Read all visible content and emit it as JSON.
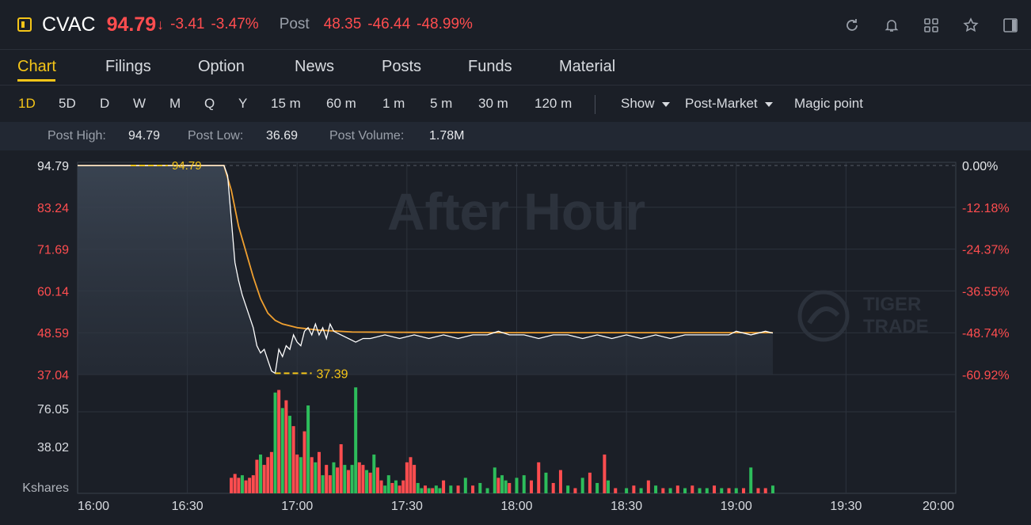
{
  "header": {
    "symbol": "CVAC",
    "price": "94.79",
    "price_arrow": "↓",
    "change": "-3.41",
    "change_pct": "-3.47%",
    "post_label": "Post",
    "post_price": "48.35",
    "post_change": "-46.44",
    "post_change_pct": "-48.99%",
    "icons": [
      "refresh-icon",
      "bell-icon",
      "grid-icon",
      "star-icon",
      "panel-icon"
    ]
  },
  "tabs": [
    "Chart",
    "Filings",
    "Option",
    "News",
    "Posts",
    "Funds",
    "Material"
  ],
  "active_tab": "Chart",
  "periods": [
    "1D",
    "5D",
    "D",
    "W",
    "M",
    "Q",
    "Y",
    "15 m",
    "60 m",
    "1 m",
    "5 m",
    "30 m",
    "120 m"
  ],
  "active_period": "1D",
  "options": {
    "show": "Show",
    "post_market": "Post-Market",
    "magic": "Magic point"
  },
  "stats": {
    "post_high_label": "Post High:",
    "post_high": "94.79",
    "post_low_label": "Post Low:",
    "post_low": "36.69",
    "post_volume_label": "Post Volume:",
    "post_volume": "1.78M"
  },
  "colors": {
    "up": "#2dbd5b",
    "down": "#ff4d4f",
    "accent": "#f5c518",
    "avg_line": "#f0a030",
    "price_line": "#ffffff"
  },
  "chart_data": {
    "type": "line",
    "watermark": "After Hour",
    "brand": [
      "TIGER",
      "TRADE"
    ],
    "x_ticks": [
      "16:00",
      "16:30",
      "17:00",
      "17:30",
      "18:00",
      "18:30",
      "19:00",
      "19:30",
      "20:00"
    ],
    "x_range": [
      "16:00",
      "20:00"
    ],
    "price_ticks": [
      "94.79",
      "83.24",
      "71.69",
      "60.14",
      "48.59",
      "37.04"
    ],
    "pct_ticks": [
      "0.00%",
      "-12.18%",
      "-24.37%",
      "-36.55%",
      "-48.74%",
      "-60.92%"
    ],
    "ylim": [
      37.04,
      94.79
    ],
    "high_annotation": "94.79",
    "low_annotation": "37.39",
    "price_series": [
      [
        0,
        94.79
      ],
      [
        40,
        94.79
      ],
      [
        41,
        92
      ],
      [
        42,
        80
      ],
      [
        43,
        68
      ],
      [
        44,
        63
      ],
      [
        45,
        59
      ],
      [
        46,
        56
      ],
      [
        47,
        53
      ],
      [
        48,
        50
      ],
      [
        49,
        45
      ],
      [
        50,
        43
      ],
      [
        51,
        44
      ],
      [
        52,
        41
      ],
      [
        53,
        38
      ],
      [
        54,
        37.39
      ],
      [
        55,
        44
      ],
      [
        56,
        42
      ],
      [
        57,
        45
      ],
      [
        58,
        44
      ],
      [
        59,
        48
      ],
      [
        60,
        46
      ],
      [
        61,
        45
      ],
      [
        62,
        49
      ],
      [
        63,
        50
      ],
      [
        64,
        48
      ],
      [
        65,
        51
      ],
      [
        66,
        48
      ],
      [
        67,
        50
      ],
      [
        68,
        47
      ],
      [
        69,
        51
      ],
      [
        70,
        49
      ],
      [
        72,
        48
      ],
      [
        74,
        47
      ],
      [
        76,
        46
      ],
      [
        78,
        47
      ],
      [
        80,
        47
      ],
      [
        84,
        48
      ],
      [
        88,
        47
      ],
      [
        92,
        48
      ],
      [
        96,
        47
      ],
      [
        100,
        48
      ],
      [
        104,
        47
      ],
      [
        108,
        48
      ],
      [
        112,
        48
      ],
      [
        115,
        49
      ],
      [
        118,
        48
      ],
      [
        122,
        48
      ],
      [
        126,
        47
      ],
      [
        130,
        48
      ],
      [
        134,
        48
      ],
      [
        138,
        47
      ],
      [
        142,
        48
      ],
      [
        146,
        47
      ],
      [
        150,
        48
      ],
      [
        154,
        47
      ],
      [
        158,
        48
      ],
      [
        162,
        47
      ],
      [
        166,
        48
      ],
      [
        170,
        48
      ],
      [
        174,
        48
      ],
      [
        176,
        48
      ],
      [
        178,
        48
      ],
      [
        180,
        49
      ],
      [
        184,
        48
      ],
      [
        188,
        49
      ],
      [
        190,
        48.5
      ]
    ],
    "avg_series": [
      [
        0,
        94.79
      ],
      [
        40,
        94.79
      ],
      [
        42,
        88
      ],
      [
        44,
        78
      ],
      [
        46,
        71
      ],
      [
        48,
        64
      ],
      [
        50,
        58
      ],
      [
        52,
        54
      ],
      [
        54,
        52
      ],
      [
        56,
        51
      ],
      [
        60,
        50
      ],
      [
        66,
        49.3
      ],
      [
        75,
        48.8
      ],
      [
        90,
        48.7
      ],
      [
        120,
        48.6
      ],
      [
        150,
        48.6
      ],
      [
        190,
        48.6
      ]
    ],
    "volume_label": "Kshares",
    "volume_ticks": [
      "76.05",
      "38.02"
    ],
    "volume_ylim": [
      0,
      95
    ],
    "volume_bars": [
      [
        42,
        12,
        "d"
      ],
      [
        43,
        15,
        "d"
      ],
      [
        44,
        12,
        "d"
      ],
      [
        45,
        14,
        "g"
      ],
      [
        46,
        10,
        "d"
      ],
      [
        47,
        12,
        "d"
      ],
      [
        48,
        14,
        "d"
      ],
      [
        49,
        26,
        "d"
      ],
      [
        50,
        30,
        "g"
      ],
      [
        51,
        22,
        "d"
      ],
      [
        52,
        28,
        "d"
      ],
      [
        53,
        32,
        "d"
      ],
      [
        54,
        78,
        "g"
      ],
      [
        55,
        80,
        "d"
      ],
      [
        56,
        66,
        "g"
      ],
      [
        57,
        72,
        "d"
      ],
      [
        58,
        60,
        "g"
      ],
      [
        59,
        52,
        "d"
      ],
      [
        60,
        30,
        "d"
      ],
      [
        61,
        28,
        "g"
      ],
      [
        62,
        48,
        "d"
      ],
      [
        63,
        68,
        "g"
      ],
      [
        64,
        28,
        "d"
      ],
      [
        65,
        24,
        "g"
      ],
      [
        66,
        32,
        "d"
      ],
      [
        67,
        14,
        "g"
      ],
      [
        68,
        22,
        "d"
      ],
      [
        69,
        14,
        "d"
      ],
      [
        70,
        24,
        "g"
      ],
      [
        71,
        20,
        "d"
      ],
      [
        72,
        38,
        "d"
      ],
      [
        73,
        22,
        "g"
      ],
      [
        74,
        18,
        "d"
      ],
      [
        75,
        22,
        "g"
      ],
      [
        76,
        82,
        "g"
      ],
      [
        77,
        24,
        "d"
      ],
      [
        78,
        22,
        "d"
      ],
      [
        79,
        18,
        "g"
      ],
      [
        80,
        16,
        "d"
      ],
      [
        81,
        30,
        "g"
      ],
      [
        82,
        20,
        "d"
      ],
      [
        83,
        10,
        "d"
      ],
      [
        84,
        6,
        "g"
      ],
      [
        85,
        14,
        "g"
      ],
      [
        86,
        8,
        "d"
      ],
      [
        87,
        10,
        "g"
      ],
      [
        88,
        6,
        "d"
      ],
      [
        89,
        10,
        "d"
      ],
      [
        90,
        24,
        "d"
      ],
      [
        91,
        28,
        "d"
      ],
      [
        92,
        22,
        "d"
      ],
      [
        93,
        8,
        "g"
      ],
      [
        94,
        4,
        "g"
      ],
      [
        95,
        6,
        "d"
      ],
      [
        96,
        4,
        "g"
      ],
      [
        97,
        4,
        "d"
      ],
      [
        98,
        6,
        "g"
      ],
      [
        99,
        4,
        "g"
      ],
      [
        100,
        10,
        "d"
      ],
      [
        102,
        6,
        "g"
      ],
      [
        104,
        6,
        "d"
      ],
      [
        106,
        12,
        "g"
      ],
      [
        108,
        6,
        "d"
      ],
      [
        110,
        8,
        "g"
      ],
      [
        112,
        4,
        "g"
      ],
      [
        114,
        20,
        "g"
      ],
      [
        115,
        12,
        "d"
      ],
      [
        116,
        14,
        "g"
      ],
      [
        117,
        10,
        "g"
      ],
      [
        118,
        8,
        "d"
      ],
      [
        120,
        12,
        "g"
      ],
      [
        122,
        14,
        "g"
      ],
      [
        124,
        10,
        "d"
      ],
      [
        126,
        24,
        "d"
      ],
      [
        128,
        16,
        "g"
      ],
      [
        130,
        8,
        "d"
      ],
      [
        132,
        18,
        "d"
      ],
      [
        134,
        6,
        "g"
      ],
      [
        136,
        4,
        "d"
      ],
      [
        138,
        12,
        "g"
      ],
      [
        140,
        16,
        "d"
      ],
      [
        142,
        8,
        "g"
      ],
      [
        144,
        30,
        "d"
      ],
      [
        145,
        10,
        "g"
      ],
      [
        147,
        4,
        "d"
      ],
      [
        150,
        4,
        "g"
      ],
      [
        152,
        6,
        "d"
      ],
      [
        154,
        4,
        "g"
      ],
      [
        156,
        10,
        "d"
      ],
      [
        158,
        6,
        "g"
      ],
      [
        160,
        4,
        "d"
      ],
      [
        162,
        4,
        "g"
      ],
      [
        164,
        6,
        "d"
      ],
      [
        166,
        4,
        "g"
      ],
      [
        168,
        6,
        "d"
      ],
      [
        170,
        4,
        "g"
      ],
      [
        172,
        4,
        "g"
      ],
      [
        174,
        6,
        "d"
      ],
      [
        176,
        4,
        "g"
      ],
      [
        178,
        4,
        "d"
      ],
      [
        180,
        4,
        "g"
      ],
      [
        182,
        4,
        "d"
      ],
      [
        184,
        20,
        "g"
      ],
      [
        186,
        4,
        "d"
      ],
      [
        188,
        4,
        "d"
      ],
      [
        190,
        6,
        "g"
      ]
    ]
  }
}
